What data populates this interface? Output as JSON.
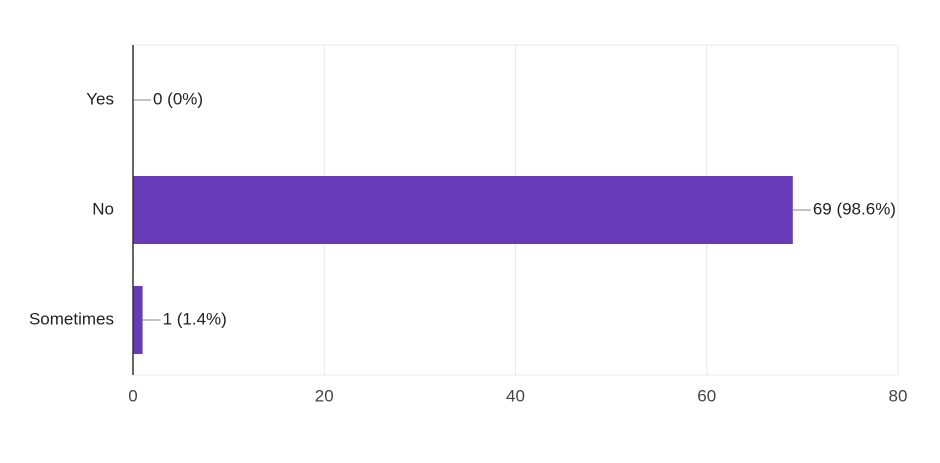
{
  "chart_data": {
    "type": "bar",
    "orientation": "horizontal",
    "categories": [
      "Yes",
      "No",
      "Sometimes"
    ],
    "values": [
      0,
      69,
      1
    ],
    "value_labels": [
      "0 (0%)",
      "69 (98.6%)",
      "1 (1.4%)"
    ],
    "color": "#673ab7",
    "xlim": [
      0,
      80
    ],
    "xticks": [
      0,
      20,
      40,
      60,
      80
    ],
    "grid": true
  }
}
